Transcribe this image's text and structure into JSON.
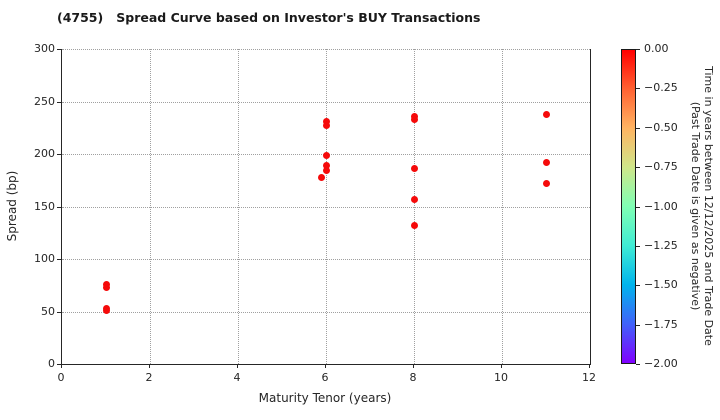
{
  "chart_data": {
    "type": "scatter",
    "title": "(4755)   Spread Curve based on Investor's BUY Transactions",
    "xlabel": "Maturity Tenor (years)",
    "ylabel": "Spread (bp)",
    "xlim": [
      0,
      12
    ],
    "ylim": [
      0,
      300
    ],
    "x_ticks": [
      0,
      2,
      4,
      6,
      8,
      10,
      12
    ],
    "x_tick_labels": [
      "0",
      "2",
      "4",
      "6",
      "8",
      "10",
      "12"
    ],
    "y_ticks": [
      0,
      50,
      100,
      150,
      200,
      250,
      300
    ],
    "y_tick_labels": [
      "0",
      "50",
      "100",
      "150",
      "200",
      "250",
      "300"
    ],
    "grid": true,
    "grid_style": "dotted",
    "point_color": "#f50a0a",
    "points": [
      {
        "x": 1,
        "y": 76,
        "t": 0.0
      },
      {
        "x": 1,
        "y": 73,
        "t": 0.0
      },
      {
        "x": 1,
        "y": 53,
        "t": 0.0
      },
      {
        "x": 1,
        "y": 51,
        "t": 0.0
      },
      {
        "x": 6,
        "y": 231,
        "t": 0.0
      },
      {
        "x": 6,
        "y": 227,
        "t": 0.0
      },
      {
        "x": 6,
        "y": 199,
        "t": 0.0
      },
      {
        "x": 6,
        "y": 189,
        "t": 0.0
      },
      {
        "x": 6,
        "y": 184,
        "t": 0.0
      },
      {
        "x": 5.9,
        "y": 178,
        "t": 0.0
      },
      {
        "x": 8,
        "y": 236,
        "t": 0.0
      },
      {
        "x": 8,
        "y": 233,
        "t": 0.0
      },
      {
        "x": 8,
        "y": 186,
        "t": 0.0
      },
      {
        "x": 8,
        "y": 157,
        "t": 0.0
      },
      {
        "x": 8,
        "y": 132,
        "t": 0.0
      },
      {
        "x": 11,
        "y": 238,
        "t": 0.0
      },
      {
        "x": 11,
        "y": 192,
        "t": 0.0
      },
      {
        "x": 11,
        "y": 172,
        "t": 0.0
      }
    ],
    "colorbar": {
      "range": [
        0,
        -2
      ],
      "tick_labels": [
        "0.00",
        "−0.25",
        "−0.50",
        "−0.75",
        "−1.00",
        "−1.25",
        "−1.50",
        "−1.75",
        "−2.00"
      ],
      "label_line1": "Time in years between 12/12/2025 and Trade Date",
      "label_line2": "(Past Trade Date is given as negative)",
      "gradient_stops": [
        {
          "pos": 0.0,
          "color": "#ff0000"
        },
        {
          "pos": 0.125,
          "color": "#ff6232"
        },
        {
          "pos": 0.25,
          "color": "#ffb462"
        },
        {
          "pos": 0.375,
          "color": "#cfe68a"
        },
        {
          "pos": 0.5,
          "color": "#80ffb4"
        },
        {
          "pos": 0.625,
          "color": "#40ecd4"
        },
        {
          "pos": 0.75,
          "color": "#00b4ec"
        },
        {
          "pos": 0.875,
          "color": "#4062fa"
        },
        {
          "pos": 1.0,
          "color": "#8000ff"
        }
      ]
    }
  }
}
